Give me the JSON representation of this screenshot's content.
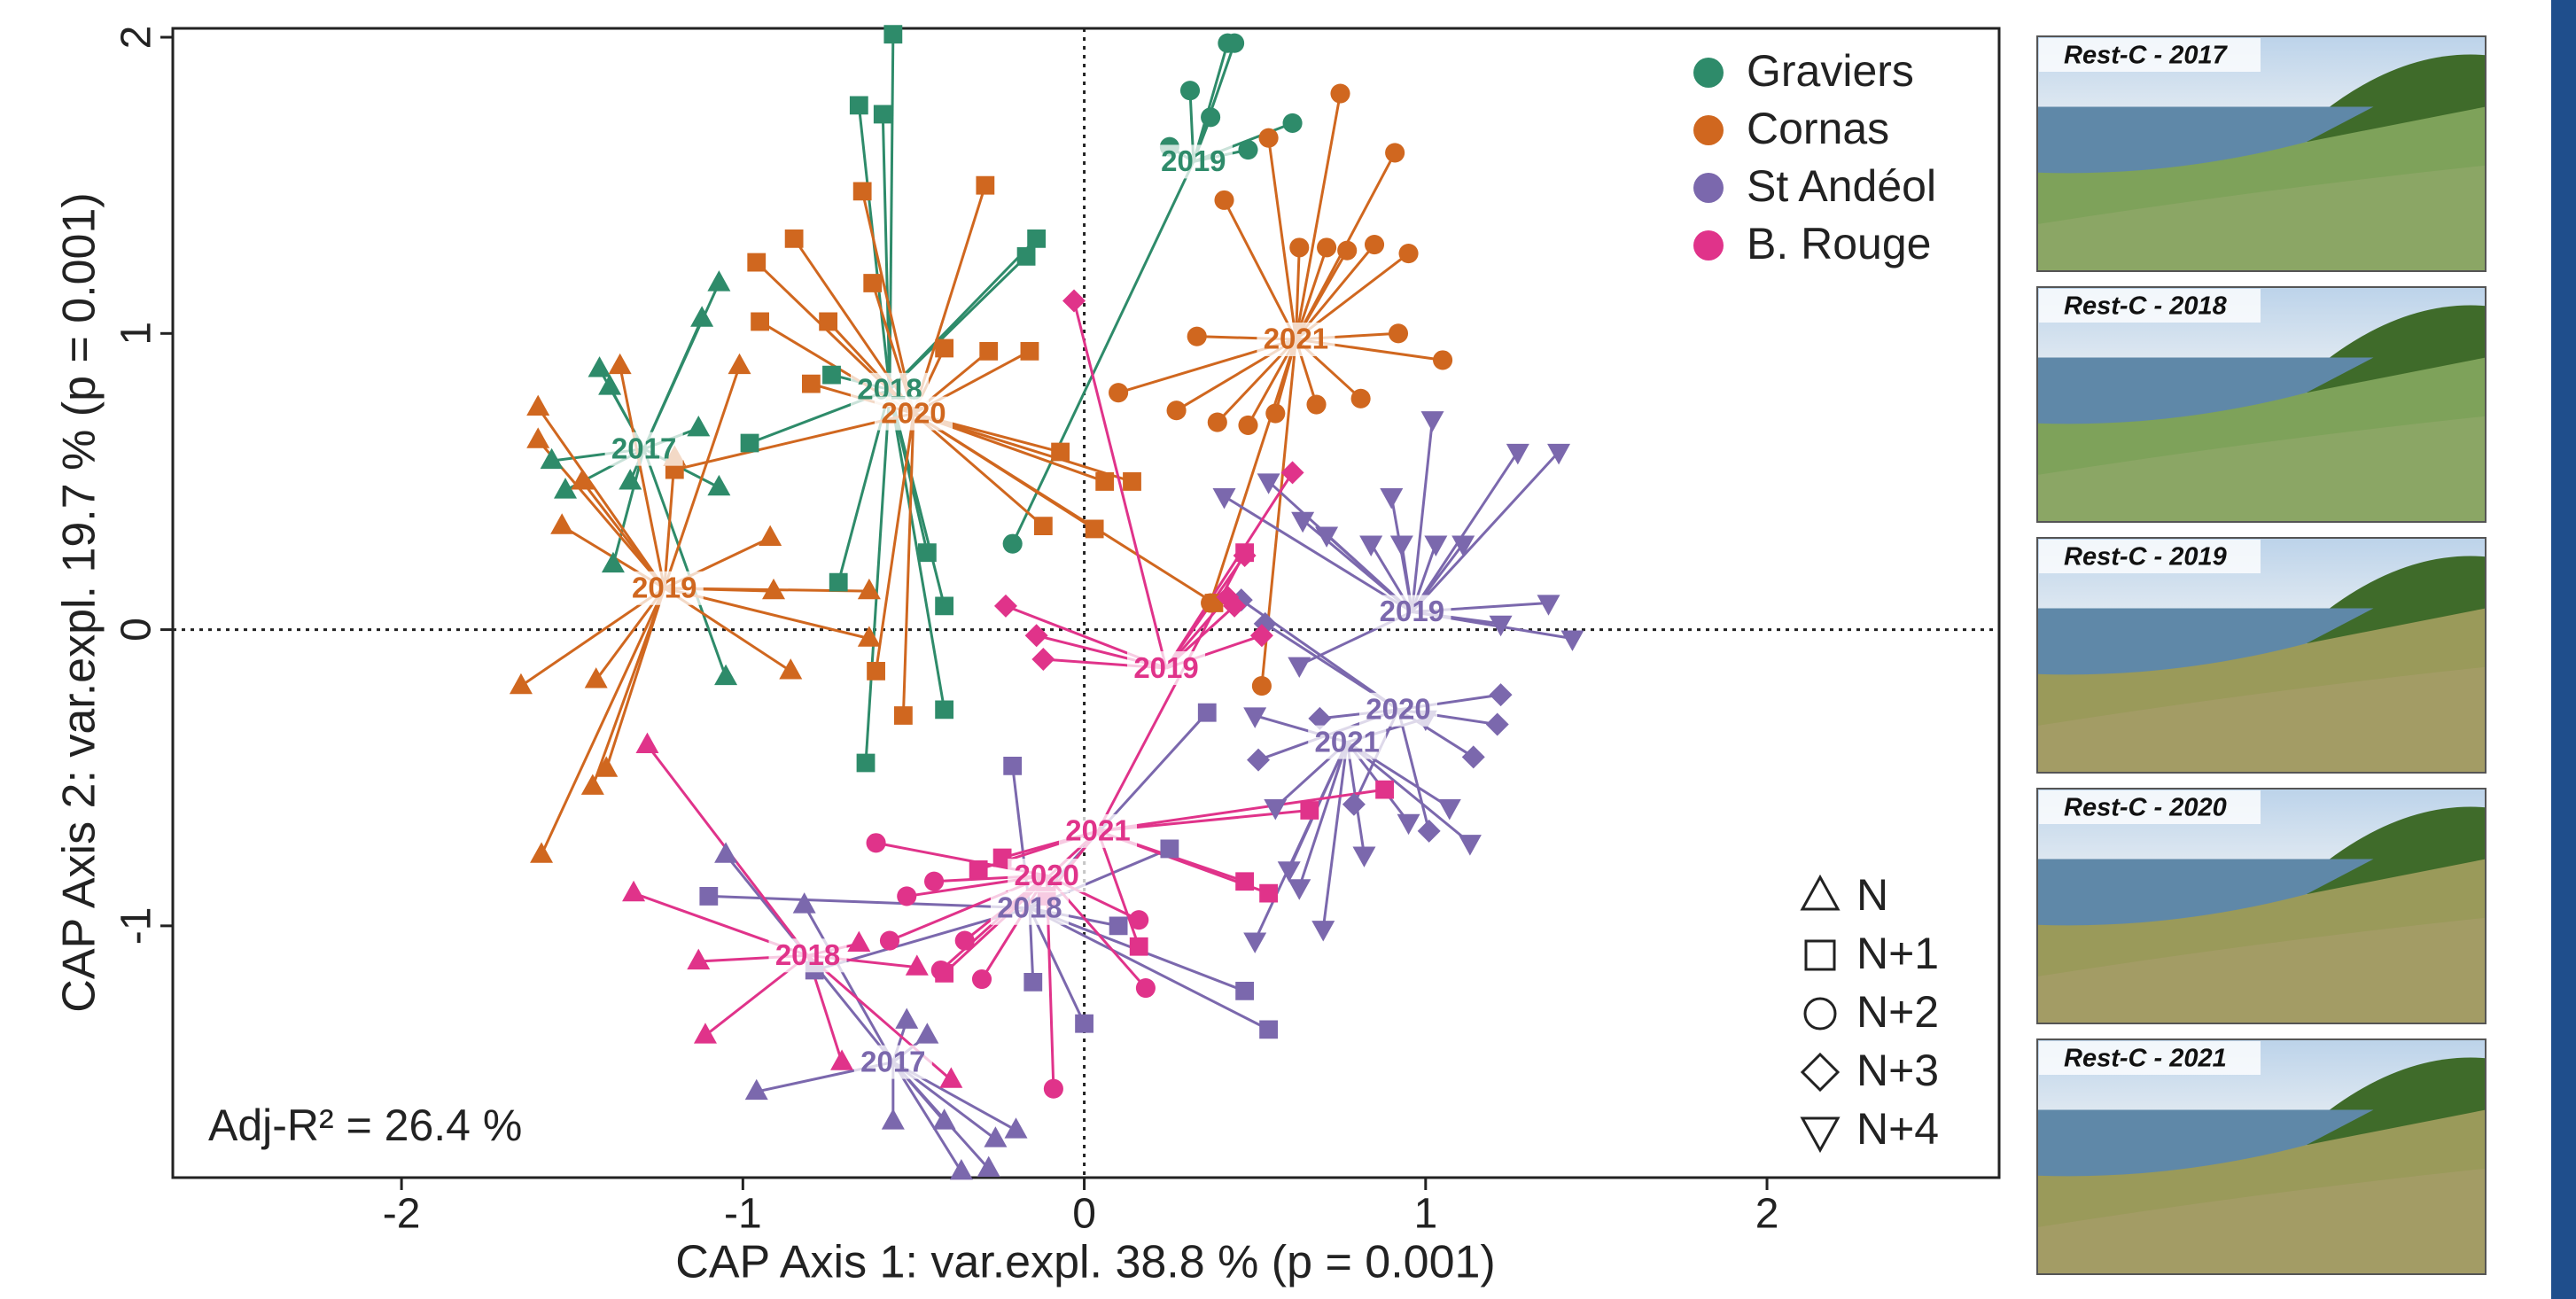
{
  "chart_data": {
    "type": "scatter",
    "x_label": "CAP Axis 1: var.expl. 38.8 % (p = 0.001)",
    "y_label": "CAP Axis 2: var.expl. 19.7 % (p = 0.001)",
    "annotation": "Adj-R² = 26.4 %",
    "xlim": [
      -2.67,
      2.68
    ],
    "ylim": [
      -1.85,
      2.03
    ],
    "xticks": [
      -2,
      -1,
      0,
      1,
      2
    ],
    "yticks": [
      -1,
      0,
      1,
      2
    ],
    "reference_lines": {
      "x": 0,
      "y": 0
    },
    "shape_legend": {
      "labels": [
        "N",
        "N+1",
        "N+2",
        "N+3",
        "N+4"
      ],
      "markers": [
        "triangle",
        "square",
        "circle",
        "diamond",
        "triangle-down"
      ]
    },
    "series": [
      {
        "name": "Graviers",
        "color": "#2e8b6a",
        "groups": [
          {
            "label": "2017",
            "marker": "triangle",
            "centroid": {
              "x": -1.29,
              "y": 0.61
            },
            "x": [
              -1.42,
              -1.39,
              -1.07,
              -1.12,
              -1.56,
              -1.52,
              -1.33,
              -1.13,
              -1.07,
              -1.05,
              -1.38
            ],
            "y": [
              0.88,
              0.82,
              1.17,
              1.05,
              0.57,
              0.47,
              0.5,
              0.68,
              0.48,
              -0.16,
              0.22
            ]
          },
          {
            "label": "2018",
            "marker": "square",
            "centroid": {
              "x": -0.57,
              "y": 0.81
            },
            "x": [
              -0.56,
              -0.66,
              -0.59,
              -0.14,
              -0.17,
              -0.74,
              -0.98,
              -0.46,
              -0.41,
              -0.41,
              -0.64,
              -0.72
            ],
            "y": [
              2.01,
              1.77,
              1.74,
              1.32,
              1.26,
              0.86,
              0.63,
              0.26,
              0.08,
              -0.27,
              -0.45,
              0.16
            ]
          },
          {
            "label": "2019",
            "marker": "circle",
            "centroid": {
              "x": 0.32,
              "y": 1.58
            },
            "x": [
              0.44,
              0.42,
              0.31,
              0.37,
              0.48,
              0.61,
              0.25,
              -0.21
            ],
            "y": [
              1.98,
              1.98,
              1.82,
              1.73,
              1.62,
              1.71,
              1.63,
              0.29
            ]
          }
        ]
      },
      {
        "name": "Cornas",
        "color": "#d0671f",
        "groups": [
          {
            "label": "2019",
            "marker": "triangle",
            "centroid": {
              "x": -1.23,
              "y": 0.14
            },
            "x": [
              -1.6,
              -1.6,
              -1.47,
              -1.53,
              -1.36,
              -1.01,
              -1.2,
              -0.92,
              -0.91,
              -0.86,
              -1.43,
              -1.65,
              -1.44,
              -1.4,
              -1.59,
              -0.63,
              -0.63
            ],
            "y": [
              0.75,
              0.64,
              0.5,
              0.35,
              0.89,
              0.89,
              0.58,
              0.31,
              0.13,
              -0.14,
              -0.17,
              -0.19,
              -0.53,
              -0.47,
              -0.76,
              0.13,
              -0.03
            ]
          },
          {
            "label": "2020",
            "marker": "square",
            "centroid": {
              "x": -0.5,
              "y": 0.73
            },
            "x": [
              -0.85,
              -0.96,
              -0.95,
              -0.75,
              -0.62,
              -0.65,
              -0.29,
              -0.41,
              -0.28,
              -0.16,
              -0.8,
              -1.2,
              -0.12,
              0.06,
              0.14,
              0.03,
              0.38,
              -0.61,
              -0.53,
              -0.07
            ],
            "y": [
              1.32,
              1.24,
              1.04,
              1.04,
              1.17,
              1.48,
              1.5,
              0.95,
              0.94,
              0.94,
              0.83,
              0.54,
              0.35,
              0.5,
              0.5,
              0.34,
              0.09,
              -0.14,
              -0.29,
              0.6
            ]
          },
          {
            "label": "2021",
            "marker": "circle",
            "centroid": {
              "x": 0.62,
              "y": 0.98
            },
            "x": [
              0.75,
              0.54,
              0.41,
              0.91,
              0.63,
              0.71,
              0.77,
              0.85,
              0.95,
              0.33,
              0.92,
              1.05,
              0.1,
              0.27,
              0.39,
              0.48,
              0.56,
              0.68,
              0.81,
              0.37,
              0.52
            ],
            "y": [
              1.81,
              1.66,
              1.45,
              1.61,
              1.29,
              1.29,
              1.28,
              1.3,
              1.27,
              0.99,
              1.0,
              0.91,
              0.8,
              0.74,
              0.7,
              0.69,
              0.73,
              0.76,
              0.78,
              0.09,
              -0.19
            ]
          }
        ]
      },
      {
        "name": "St Andéol",
        "color": "#7b68ad",
        "groups": [
          {
            "label": "2017",
            "marker": "triangle",
            "centroid": {
              "x": -0.56,
              "y": -1.46
            },
            "x": [
              -1.05,
              -0.96,
              -0.82,
              -0.56,
              -0.52,
              -0.46,
              -0.41,
              -0.36,
              -0.28,
              -0.2,
              -0.26
            ],
            "y": [
              -0.76,
              -1.56,
              -0.93,
              -1.66,
              -1.32,
              -1.37,
              -1.66,
              -1.83,
              -1.82,
              -1.69,
              -1.72
            ]
          },
          {
            "label": "2018",
            "marker": "square",
            "centroid": {
              "x": -0.16,
              "y": -0.94
            },
            "x": [
              -1.1,
              -0.21,
              -0.15,
              0.0,
              0.47,
              0.54,
              0.25,
              0.36,
              0.1,
              -0.79
            ],
            "y": [
              -0.9,
              -0.46,
              -1.19,
              -1.33,
              -1.22,
              -1.35,
              -0.74,
              -0.28,
              -1.0,
              -1.15
            ]
          },
          {
            "label": "2019",
            "marker": "triangle-down",
            "centroid": {
              "x": 0.96,
              "y": 0.06
            },
            "x": [
              0.41,
              0.54,
              0.64,
              0.71,
              0.84,
              0.93,
              1.03,
              1.11,
              0.9,
              1.27,
              1.39,
              1.02,
              0.63,
              1.22,
              1.36,
              1.43
            ],
            "y": [
              0.45,
              0.5,
              0.37,
              0.32,
              0.29,
              0.29,
              0.29,
              0.29,
              0.45,
              0.6,
              0.6,
              0.71,
              -0.12,
              0.02,
              0.09,
              -0.03
            ]
          },
          {
            "label": "2020",
            "marker": "diamond",
            "centroid": {
              "x": 0.92,
              "y": -0.27
            },
            "x": [
              0.46,
              0.53,
              0.69,
              1.22,
              1.21,
              1.01,
              1.14,
              0.51,
              0.79
            ],
            "y": [
              0.1,
              0.02,
              -0.3,
              -0.22,
              -0.32,
              -0.68,
              -0.43,
              -0.44,
              -0.59
            ]
          },
          {
            "label": "2021",
            "marker": "triangle-down",
            "centroid": {
              "x": 0.77,
              "y": -0.38
            },
            "x": [
              0.5,
              0.63,
              0.7,
              0.82,
              1.13,
              0.95,
              1.07,
              0.56,
              1.0,
              0.5,
              0.6
            ],
            "y": [
              -0.29,
              -0.87,
              -1.01,
              -0.76,
              -0.72,
              -0.65,
              -0.6,
              -0.6,
              -0.3,
              -1.05,
              -0.81
            ]
          }
        ]
      },
      {
        "name": "B. Rouge",
        "color": "#e0338a",
        "groups": [
          {
            "label": "2018",
            "marker": "triangle",
            "centroid": {
              "x": -0.81,
              "y": -1.1
            },
            "x": [
              -1.28,
              -1.32,
              -1.13,
              -1.11,
              -0.71,
              -0.49,
              -0.39,
              -0.66
            ],
            "y": [
              -0.39,
              -0.89,
              -1.12,
              -1.37,
              -1.46,
              -1.14,
              -1.52,
              -1.06
            ]
          },
          {
            "label": "2020",
            "marker": "circle",
            "centroid": {
              "x": -0.11,
              "y": -0.83
            },
            "x": [
              -0.61,
              -0.52,
              -0.57,
              -0.35,
              -0.09,
              0.18,
              0.16,
              -0.44,
              -0.3,
              -0.42
            ],
            "y": [
              -0.72,
              -0.9,
              -1.05,
              -1.05,
              -1.55,
              -1.21,
              -0.98,
              -0.85,
              -1.18,
              -1.15
            ]
          },
          {
            "label": "2019",
            "marker": "diamond",
            "centroid": {
              "x": 0.24,
              "y": -0.13
            },
            "x": [
              -0.23,
              -0.14,
              -0.12,
              -0.03,
              0.61,
              0.47,
              0.42,
              0.52,
              0.44
            ],
            "y": [
              0.08,
              -0.02,
              -0.1,
              1.11,
              0.53,
              0.25,
              0.11,
              -0.02,
              0.08
            ]
          },
          {
            "label": "2021",
            "marker": "square",
            "centroid": {
              "x": 0.04,
              "y": -0.68
            },
            "x": [
              -0.24,
              -0.11,
              -0.31,
              0.47,
              0.54,
              0.16,
              0.88,
              0.66,
              -0.41,
              0.47
            ],
            "y": [
              -0.77,
              -0.9,
              -0.81,
              -0.85,
              -0.89,
              -1.07,
              -0.54,
              -0.61,
              -1.16,
              0.26
            ]
          }
        ]
      }
    ]
  },
  "photos": [
    "Rest-C - 2017",
    "Rest-C - 2018",
    "Rest-C - 2019",
    "Rest-C - 2020",
    "Rest-C - 2021"
  ]
}
